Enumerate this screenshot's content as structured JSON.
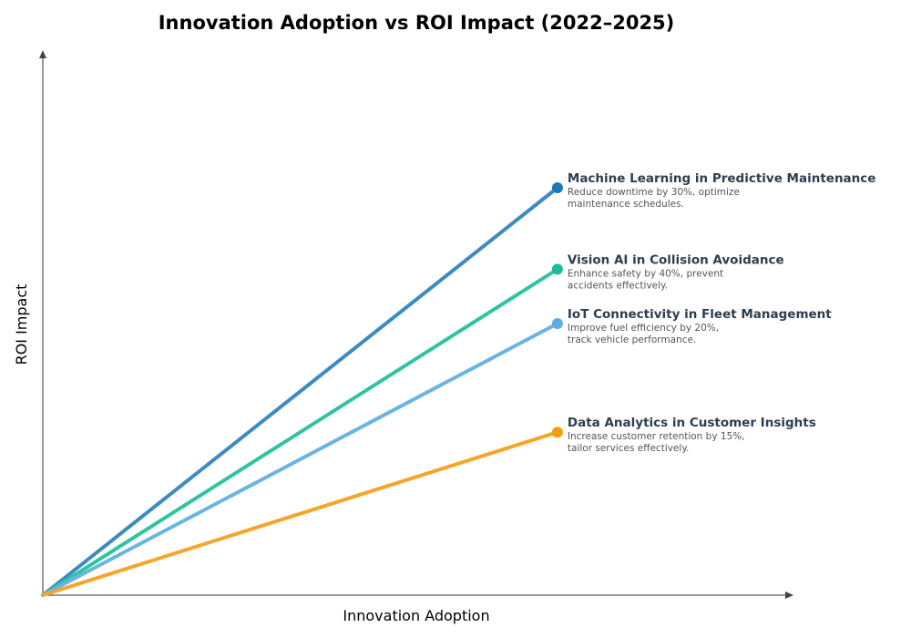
{
  "chart_data": {
    "type": "line",
    "title": "Innovation Adoption vs ROI Impact (2022–2025)",
    "xlabel": "Innovation Adoption",
    "ylabel": "ROI Impact",
    "xlim": [
      0,
      1
    ],
    "ylim": [
      0,
      1
    ],
    "grid": false,
    "ticks_shown": false,
    "series": [
      {
        "name": "Machine Learning in Predictive Maintenance",
        "description": [
          "Reduce downtime by 30%, optimize",
          "maintenance schedules."
        ],
        "x": [
          0,
          0.7
        ],
        "y": [
          0,
          0.75
        ],
        "line_color": "#3d8bc0",
        "marker_color": "#1f78b4"
      },
      {
        "name": "Vision AI in Collision Avoidance",
        "description": [
          "Enhance safety by 40%, prevent",
          "accidents effectively."
        ],
        "x": [
          0,
          0.7
        ],
        "y": [
          0,
          0.6
        ],
        "line_color": "#2ec4a0",
        "marker_color": "#1abc9c"
      },
      {
        "name": "IoT Connectivity in Fleet Management",
        "description": [
          "Improve fuel efficiency by 20%,",
          "track vehicle performance."
        ],
        "x": [
          0,
          0.7
        ],
        "y": [
          0,
          0.5
        ],
        "line_color": "#6ab4e4",
        "marker_color": "#5dade2"
      },
      {
        "name": "Data Analytics in Customer Insights",
        "description": [
          "Increase customer retention by 15%,",
          "tailor services effectively."
        ],
        "x": [
          0,
          0.7
        ],
        "y": [
          0,
          0.3
        ],
        "line_color": "#f5a52a",
        "marker_color": "#f39c12"
      }
    ],
    "label_color": "#2c3e50",
    "description_color": "#555555"
  }
}
